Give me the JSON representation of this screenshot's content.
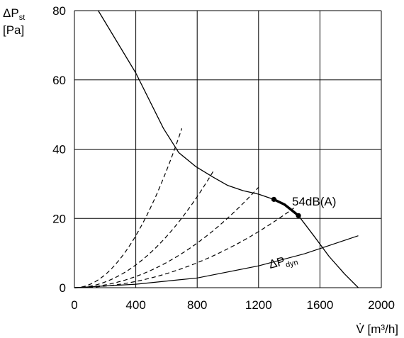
{
  "chart_data": {
    "type": "line",
    "ylabel_line1_prefix": "ΔP",
    "ylabel_line1_sub": "st",
    "ylabel_line2": "[Pa]",
    "xlabel": "V̇ [m³/h]",
    "xlim": [
      0,
      2000
    ],
    "ylim": [
      0,
      80
    ],
    "x_ticks": [
      0,
      400,
      800,
      1200,
      1600,
      2000
    ],
    "y_ticks": [
      0,
      20,
      40,
      60,
      80
    ],
    "grid": true,
    "fan_curve": [
      [
        155,
        80
      ],
      [
        400,
        62
      ],
      [
        580,
        46
      ],
      [
        680,
        39
      ],
      [
        790,
        35
      ],
      [
        900,
        32
      ],
      [
        1000,
        29.5
      ],
      [
        1100,
        28
      ],
      [
        1200,
        27
      ],
      [
        1300,
        25.5
      ],
      [
        1370,
        24
      ],
      [
        1460,
        20.8
      ],
      [
        1560,
        15
      ],
      [
        1660,
        9
      ],
      [
        1760,
        4
      ],
      [
        1850,
        0
      ]
    ],
    "operating_range": [
      [
        1300,
        25.5
      ],
      [
        1370,
        24
      ],
      [
        1460,
        20.8
      ]
    ],
    "operating_points": [
      [
        1300,
        25.5
      ],
      [
        1460,
        20.8
      ]
    ],
    "annotation": "54dB(A)",
    "dynamic_pressure_label_prefix": "ΔP",
    "dynamic_pressure_label_sub": "dyn",
    "dynamic_pressure_curve": [
      [
        0,
        0
      ],
      [
        400,
        1
      ],
      [
        800,
        2.8
      ],
      [
        1200,
        6.3
      ],
      [
        1500,
        9.8
      ],
      [
        1850,
        15
      ]
    ],
    "system_curves": [
      {
        "end": [
          700,
          46
        ]
      },
      {
        "end": [
          910,
          34
        ]
      },
      {
        "end": [
          1200,
          29
        ]
      },
      {
        "end": [
          1430,
          23
        ]
      }
    ]
  }
}
